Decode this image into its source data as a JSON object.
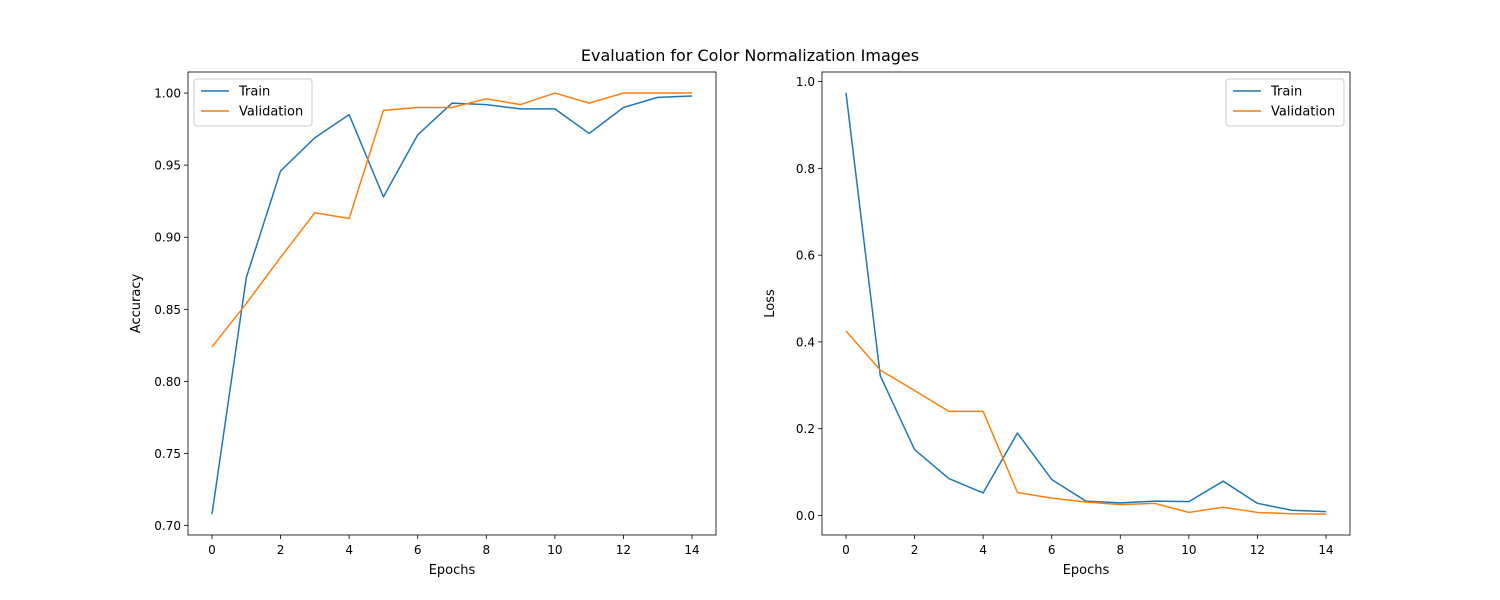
{
  "figure": {
    "title": "Evaluation for Color Normalization Images"
  },
  "chart_data": [
    {
      "type": "line",
      "title": "",
      "xlabel": "Epochs",
      "ylabel": "Accuracy",
      "x": [
        0,
        1,
        2,
        3,
        4,
        5,
        6,
        7,
        8,
        9,
        10,
        11,
        12,
        13,
        14
      ],
      "xlim": [
        -0.7,
        14.7
      ],
      "ylim": [
        0.6935,
        1.0146
      ],
      "xticks": [
        0,
        2,
        4,
        6,
        8,
        10,
        12,
        14
      ],
      "yticks": [
        0.7,
        0.75,
        0.8,
        0.85,
        0.9,
        0.95,
        1.0
      ],
      "ytick_labels": [
        "0.70",
        "0.75",
        "0.80",
        "0.85",
        "0.90",
        "0.95",
        "1.00"
      ],
      "grid": false,
      "legend": "upper left",
      "series": [
        {
          "name": "Train",
          "color": "#1f77b4",
          "values": [
            0.708,
            0.872,
            0.946,
            0.969,
            0.985,
            0.928,
            0.971,
            0.993,
            0.992,
            0.989,
            0.989,
            0.972,
            0.99,
            0.997,
            0.998
          ]
        },
        {
          "name": "Validation",
          "color": "#ff7f0e",
          "values": [
            0.824,
            0.854,
            0.886,
            0.917,
            0.913,
            0.988,
            0.99,
            0.99,
            0.996,
            0.992,
            1.0,
            0.993,
            1.0,
            1.0,
            1.0
          ]
        }
      ]
    },
    {
      "type": "line",
      "title": "",
      "xlabel": "Epochs",
      "ylabel": "Loss",
      "x": [
        0,
        1,
        2,
        3,
        4,
        5,
        6,
        7,
        8,
        9,
        10,
        11,
        12,
        13,
        14
      ],
      "xlim": [
        -0.7,
        14.7
      ],
      "ylim": [
        -0.045,
        1.022
      ],
      "xticks": [
        0,
        2,
        4,
        6,
        8,
        10,
        12,
        14
      ],
      "yticks": [
        0.0,
        0.2,
        0.4,
        0.6,
        0.8,
        1.0
      ],
      "ytick_labels": [
        "0.0",
        "0.2",
        "0.4",
        "0.6",
        "0.8",
        "1.0"
      ],
      "grid": false,
      "legend": "upper right",
      "series": [
        {
          "name": "Train",
          "color": "#1f77b4",
          "values": [
            0.974,
            0.322,
            0.152,
            0.085,
            0.052,
            0.19,
            0.083,
            0.033,
            0.029,
            0.033,
            0.032,
            0.079,
            0.028,
            0.012,
            0.009
          ]
        },
        {
          "name": "Validation",
          "color": "#ff7f0e",
          "values": [
            0.425,
            0.335,
            0.288,
            0.24,
            0.24,
            0.053,
            0.04,
            0.031,
            0.025,
            0.028,
            0.007,
            0.019,
            0.007,
            0.004,
            0.003
          ]
        }
      ]
    }
  ]
}
